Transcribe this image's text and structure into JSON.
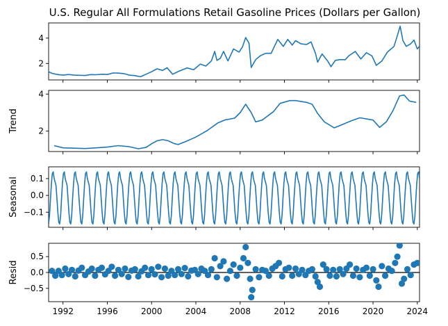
{
  "chart_data": {
    "title": "U.S. Regular All Formulations Retail Gasoline Prices (Dollars per Gallon)",
    "x_ticks": [
      "1992",
      "1996",
      "2000",
      "2004",
      "2008",
      "2012",
      "2016",
      "2020",
      "2024"
    ],
    "xlim": [
      1990.7,
      2024.2
    ],
    "panels": [
      {
        "type": "line",
        "ylabel": "",
        "ylim": [
          0.7,
          5.2
        ],
        "y_ticks": [
          2,
          4
        ],
        "y_tick_labels": [
          "2",
          "4"
        ],
        "series": [
          {
            "points": [
              [
                1990.7,
                1.35
              ],
              [
                1991.0,
                1.22
              ],
              [
                1991.5,
                1.13
              ],
              [
                1992.0,
                1.08
              ],
              [
                1992.5,
                1.13
              ],
              [
                1993.0,
                1.08
              ],
              [
                1993.5,
                1.07
              ],
              [
                1994.0,
                1.05
              ],
              [
                1994.5,
                1.12
              ],
              [
                1995.0,
                1.11
              ],
              [
                1995.5,
                1.15
              ],
              [
                1996.0,
                1.13
              ],
              [
                1996.5,
                1.25
              ],
              [
                1997.0,
                1.24
              ],
              [
                1997.5,
                1.2
              ],
              [
                1998.0,
                1.08
              ],
              [
                1998.5,
                1.04
              ],
              [
                1999.0,
                0.95
              ],
              [
                1999.5,
                1.15
              ],
              [
                2000.0,
                1.35
              ],
              [
                2000.5,
                1.58
              ],
              [
                2001.0,
                1.45
              ],
              [
                2001.4,
                1.66
              ],
              [
                2001.9,
                1.15
              ],
              [
                2002.5,
                1.4
              ],
              [
                2003.2,
                1.65
              ],
              [
                2003.8,
                1.5
              ],
              [
                2004.4,
                1.95
              ],
              [
                2004.9,
                1.8
              ],
              [
                2005.4,
                2.2
              ],
              [
                2005.7,
                2.95
              ],
              [
                2005.9,
                2.25
              ],
              [
                2006.2,
                2.4
              ],
              [
                2006.5,
                2.95
              ],
              [
                2006.9,
                2.2
              ],
              [
                2007.4,
                3.15
              ],
              [
                2007.9,
                2.9
              ],
              [
                2008.2,
                3.3
              ],
              [
                2008.5,
                4.05
              ],
              [
                2008.8,
                3.6
              ],
              [
                2009.0,
                1.68
              ],
              [
                2009.4,
                2.3
              ],
              [
                2009.8,
                2.6
              ],
              [
                2010.3,
                2.8
              ],
              [
                2010.8,
                2.8
              ],
              [
                2011.2,
                3.55
              ],
              [
                2011.4,
                3.9
              ],
              [
                2011.9,
                3.35
              ],
              [
                2012.3,
                3.9
              ],
              [
                2012.7,
                3.45
              ],
              [
                2013.0,
                3.8
              ],
              [
                2013.5,
                3.55
              ],
              [
                2014.0,
                3.5
              ],
              [
                2014.4,
                3.7
              ],
              [
                2014.8,
                2.8
              ],
              [
                2015.0,
                2.1
              ],
              [
                2015.4,
                2.75
              ],
              [
                2015.9,
                2.2
              ],
              [
                2016.2,
                1.75
              ],
              [
                2016.6,
                2.25
              ],
              [
                2017.0,
                2.3
              ],
              [
                2017.5,
                2.3
              ],
              [
                2017.8,
                2.6
              ],
              [
                2018.4,
                2.95
              ],
              [
                2018.9,
                2.35
              ],
              [
                2019.4,
                2.85
              ],
              [
                2019.9,
                2.6
              ],
              [
                2020.3,
                1.85
              ],
              [
                2020.8,
                2.2
              ],
              [
                2021.3,
                2.9
              ],
              [
                2021.9,
                3.35
              ],
              [
                2022.2,
                4.2
              ],
              [
                2022.45,
                4.95
              ],
              [
                2022.7,
                3.8
              ],
              [
                2023.0,
                3.35
              ],
              [
                2023.4,
                3.55
              ],
              [
                2023.7,
                3.85
              ],
              [
                2024.0,
                3.15
              ],
              [
                2024.2,
                3.35
              ]
            ]
          }
        ]
      },
      {
        "type": "line",
        "ylabel": "Trend",
        "ylim": [
          0.9,
          4.2
        ],
        "y_ticks": [
          2,
          4
        ],
        "y_tick_labels": [
          "2",
          "4"
        ],
        "series": [
          {
            "points": [
              [
                1991.2,
                1.22
              ],
              [
                1992.0,
                1.1
              ],
              [
                1993.0,
                1.08
              ],
              [
                1994.0,
                1.06
              ],
              [
                1995.0,
                1.1
              ],
              [
                1996.0,
                1.14
              ],
              [
                1997.0,
                1.22
              ],
              [
                1998.0,
                1.16
              ],
              [
                1998.8,
                1.05
              ],
              [
                1999.5,
                1.12
              ],
              [
                2000.0,
                1.32
              ],
              [
                2000.5,
                1.48
              ],
              [
                2001.0,
                1.54
              ],
              [
                2001.5,
                1.48
              ],
              [
                2002.0,
                1.34
              ],
              [
                2002.4,
                1.28
              ],
              [
                2003.0,
                1.42
              ],
              [
                2004.0,
                1.68
              ],
              [
                2005.0,
                2.02
              ],
              [
                2006.0,
                2.45
              ],
              [
                2006.6,
                2.6
              ],
              [
                2007.5,
                2.7
              ],
              [
                2008.0,
                3.0
              ],
              [
                2008.5,
                3.45
              ],
              [
                2009.0,
                3.0
              ],
              [
                2009.4,
                2.5
              ],
              [
                2010.0,
                2.6
              ],
              [
                2011.0,
                3.05
              ],
              [
                2011.6,
                3.5
              ],
              [
                2012.5,
                3.65
              ],
              [
                2013.0,
                3.65
              ],
              [
                2014.0,
                3.55
              ],
              [
                2014.5,
                3.45
              ],
              [
                2015.0,
                2.95
              ],
              [
                2015.6,
                2.5
              ],
              [
                2016.5,
                2.18
              ],
              [
                2017.0,
                2.3
              ],
              [
                2018.0,
                2.55
              ],
              [
                2018.8,
                2.72
              ],
              [
                2019.5,
                2.65
              ],
              [
                2020.0,
                2.6
              ],
              [
                2020.6,
                2.2
              ],
              [
                2021.2,
                2.5
              ],
              [
                2021.8,
                3.1
              ],
              [
                2022.4,
                3.9
              ],
              [
                2022.8,
                3.95
              ],
              [
                2023.3,
                3.62
              ],
              [
                2023.9,
                3.55
              ]
            ]
          }
        ]
      },
      {
        "type": "line",
        "ylabel": "Seasonal",
        "ylim": [
          -0.19,
          0.17
        ],
        "y_ticks": [
          0.1,
          0.0,
          -0.1
        ],
        "y_tick_labels": [
          "0.1",
          "0.0",
          "−0.1"
        ],
        "seasonal_cycle": [
          -0.17,
          -0.12,
          -0.02,
          0.07,
          0.13,
          0.14,
          0.1,
          0.08,
          0.06,
          -0.02,
          -0.1,
          -0.16
        ],
        "start_year": 1990.7,
        "end_year": 2024.2
      },
      {
        "type": "scatter",
        "ylabel": "Resid",
        "ylim": [
          -0.92,
          0.92
        ],
        "y_ticks": [
          0.5,
          0.0,
          -0.5
        ],
        "y_tick_labels": [
          "0.5",
          "0.0",
          "−0.5"
        ],
        "zero_line": true,
        "points": [
          [
            1991.0,
            0.05
          ],
          [
            1991.3,
            -0.1
          ],
          [
            1991.6,
            0.05
          ],
          [
            1991.9,
            -0.08
          ],
          [
            1992.2,
            0.12
          ],
          [
            1992.5,
            -0.05
          ],
          [
            1992.8,
            0.08
          ],
          [
            1993.1,
            -0.12
          ],
          [
            1993.4,
            0.06
          ],
          [
            1993.7,
            0.15
          ],
          [
            1994.0,
            -0.08
          ],
          [
            1994.3,
            0.03
          ],
          [
            1994.6,
            0.12
          ],
          [
            1994.9,
            -0.1
          ],
          [
            1995.2,
            0.08
          ],
          [
            1995.5,
            0.15
          ],
          [
            1995.8,
            -0.06
          ],
          [
            1996.1,
            0.05
          ],
          [
            1996.4,
            0.18
          ],
          [
            1996.7,
            -0.1
          ],
          [
            1997.0,
            0.08
          ],
          [
            1997.3,
            -0.05
          ],
          [
            1997.6,
            0.12
          ],
          [
            1997.9,
            -0.14
          ],
          [
            1998.2,
            0.06
          ],
          [
            1998.5,
            0.1
          ],
          [
            1998.8,
            -0.12
          ],
          [
            1999.1,
            0.04
          ],
          [
            1999.4,
            0.15
          ],
          [
            1999.7,
            -0.08
          ],
          [
            2000.0,
            0.1
          ],
          [
            2000.3,
            -0.06
          ],
          [
            2000.6,
            0.18
          ],
          [
            2000.9,
            -0.15
          ],
          [
            2001.2,
            0.12
          ],
          [
            2001.5,
            -0.1
          ],
          [
            2001.8,
            0.05
          ],
          [
            2002.1,
            -0.08
          ],
          [
            2002.4,
            0.1
          ],
          [
            2002.7,
            -0.05
          ],
          [
            2003.0,
            0.14
          ],
          [
            2003.3,
            -0.12
          ],
          [
            2003.6,
            0.06
          ],
          [
            2003.9,
            0.08
          ],
          [
            2004.2,
            -0.05
          ],
          [
            2004.5,
            0.12
          ],
          [
            2004.8,
            0.05
          ],
          [
            2005.1,
            -0.08
          ],
          [
            2005.4,
            0.1
          ],
          [
            2005.7,
            0.45
          ],
          [
            2005.9,
            -0.15
          ],
          [
            2006.2,
            0.2
          ],
          [
            2006.5,
            0.35
          ],
          [
            2006.8,
            -0.2
          ],
          [
            2007.1,
            0.05
          ],
          [
            2007.4,
            0.25
          ],
          [
            2007.7,
            -0.1
          ],
          [
            2008.0,
            0.15
          ],
          [
            2008.3,
            0.45
          ],
          [
            2008.5,
            0.8
          ],
          [
            2008.7,
            0.3
          ],
          [
            2008.9,
            -0.2
          ],
          [
            2009.0,
            -0.78
          ],
          [
            2009.1,
            -0.55
          ],
          [
            2009.4,
            0.1
          ],
          [
            2009.7,
            -0.15
          ],
          [
            2010.0,
            0.08
          ],
          [
            2010.3,
            0.05
          ],
          [
            2010.6,
            -0.1
          ],
          [
            2010.9,
            0.12
          ],
          [
            2011.2,
            0.2
          ],
          [
            2011.5,
            0.3
          ],
          [
            2011.8,
            -0.12
          ],
          [
            2012.1,
            0.1
          ],
          [
            2012.4,
            0.15
          ],
          [
            2012.7,
            -0.1
          ],
          [
            2013.0,
            0.12
          ],
          [
            2013.3,
            -0.05
          ],
          [
            2013.6,
            0.08
          ],
          [
            2013.9,
            -0.08
          ],
          [
            2014.2,
            0.05
          ],
          [
            2014.5,
            0.1
          ],
          [
            2014.8,
            -0.12
          ],
          [
            2015.0,
            -0.3
          ],
          [
            2015.2,
            -0.45
          ],
          [
            2015.5,
            0.25
          ],
          [
            2015.8,
            0.1
          ],
          [
            2016.1,
            -0.1
          ],
          [
            2016.4,
            0.08
          ],
          [
            2016.7,
            -0.12
          ],
          [
            2017.0,
            0.1
          ],
          [
            2017.3,
            -0.05
          ],
          [
            2017.6,
            0.12
          ],
          [
            2017.9,
            0.25
          ],
          [
            2018.2,
            -0.1
          ],
          [
            2018.5,
            0.12
          ],
          [
            2018.8,
            -0.15
          ],
          [
            2019.1,
            0.08
          ],
          [
            2019.4,
            0.15
          ],
          [
            2019.7,
            -0.1
          ],
          [
            2020.0,
            0.1
          ],
          [
            2020.3,
            -0.25
          ],
          [
            2020.5,
            -0.45
          ],
          [
            2020.8,
            0.2
          ],
          [
            2021.1,
            -0.1
          ],
          [
            2021.4,
            0.12
          ],
          [
            2021.7,
            0.05
          ],
          [
            2022.0,
            0.3
          ],
          [
            2022.2,
            0.5
          ],
          [
            2022.4,
            0.85
          ],
          [
            2022.6,
            -0.35
          ],
          [
            2022.8,
            -0.2
          ],
          [
            2023.1,
            0.1
          ],
          [
            2023.4,
            -0.08
          ],
          [
            2023.7,
            0.25
          ],
          [
            2024.0,
            0.3
          ]
        ]
      }
    ]
  }
}
